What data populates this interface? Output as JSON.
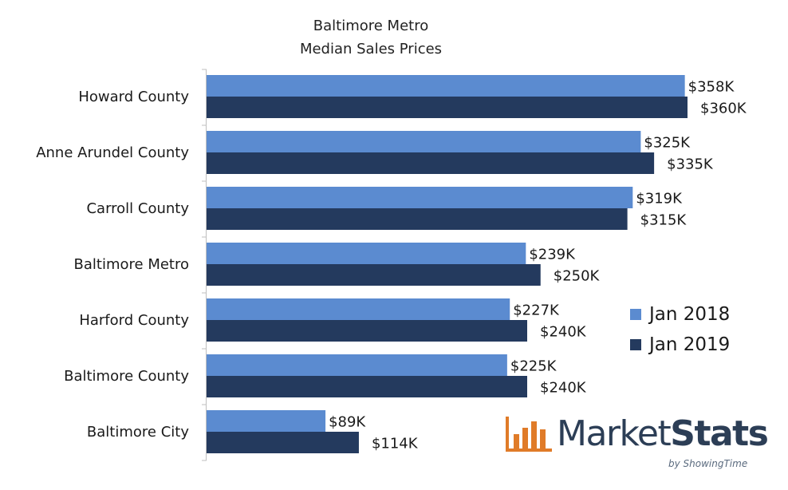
{
  "chart_data": {
    "type": "bar",
    "orientation": "horizontal",
    "title_lines": [
      "Baltimore Metro",
      "Median Sales Prices"
    ],
    "categories": [
      "Howard County",
      "Anne Arundel County",
      "Carroll County",
      "Baltimore Metro",
      "Harford County",
      "Baltimore County",
      "Baltimore City"
    ],
    "series": [
      {
        "name": "Jan 2018",
        "color": "#5b8bd0",
        "values": [
          358,
          325,
          319,
          239,
          227,
          225,
          89
        ],
        "labels": [
          "$358K",
          "$325K",
          "$319K",
          "$239K",
          "$227K",
          "$225K",
          "$89K"
        ]
      },
      {
        "name": "Jan 2019",
        "color": "#243a5e",
        "values": [
          360,
          335,
          315,
          250,
          240,
          240,
          114
        ],
        "labels": [
          "$360K",
          "$335K",
          "$315K",
          "$250K",
          "$240K",
          "$240K",
          "$114K"
        ]
      }
    ],
    "unit": "$K",
    "xlim": [
      0,
      360
    ],
    "x_axis_visible": false,
    "grid": false,
    "legend_position": "right"
  },
  "logo": {
    "icon": "bar-chart-logo-icon",
    "text_regular": "Market",
    "text_bold": "Stats",
    "byline": "by ShowingTime",
    "color": "#e07b28"
  }
}
